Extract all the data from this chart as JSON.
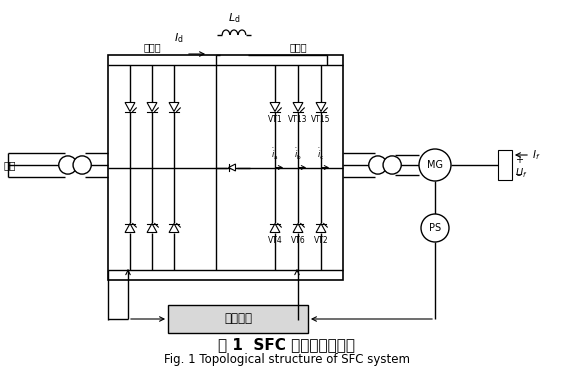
{
  "title_cn": "图 1  SFC 系统拓扑结构图",
  "title_en": "Fig. 1 Topological structure of SFC system",
  "bg_color": "#ffffff",
  "line_color": "#000000",
  "labels": {
    "diangwang": "电网",
    "wangqiaoCe": "网桥侧",
    "jiqiaoCe": "机桥侧",
    "Id": "I_d",
    "Ld": "L_d",
    "ia": "i_a",
    "ib": "i_b",
    "ic": "i_c",
    "If": "I_f",
    "Uf": "U_f",
    "VT1": "VT1",
    "VT13": "VT13",
    "VT15": "VT15",
    "VT4": "VT4",
    "VT6": "VT6",
    "VT2": "VT2",
    "ctrl": "控制系统",
    "MG": "MG",
    "PS": "PS"
  },
  "figsize": [
    5.74,
    3.69
  ],
  "dpi": 100
}
